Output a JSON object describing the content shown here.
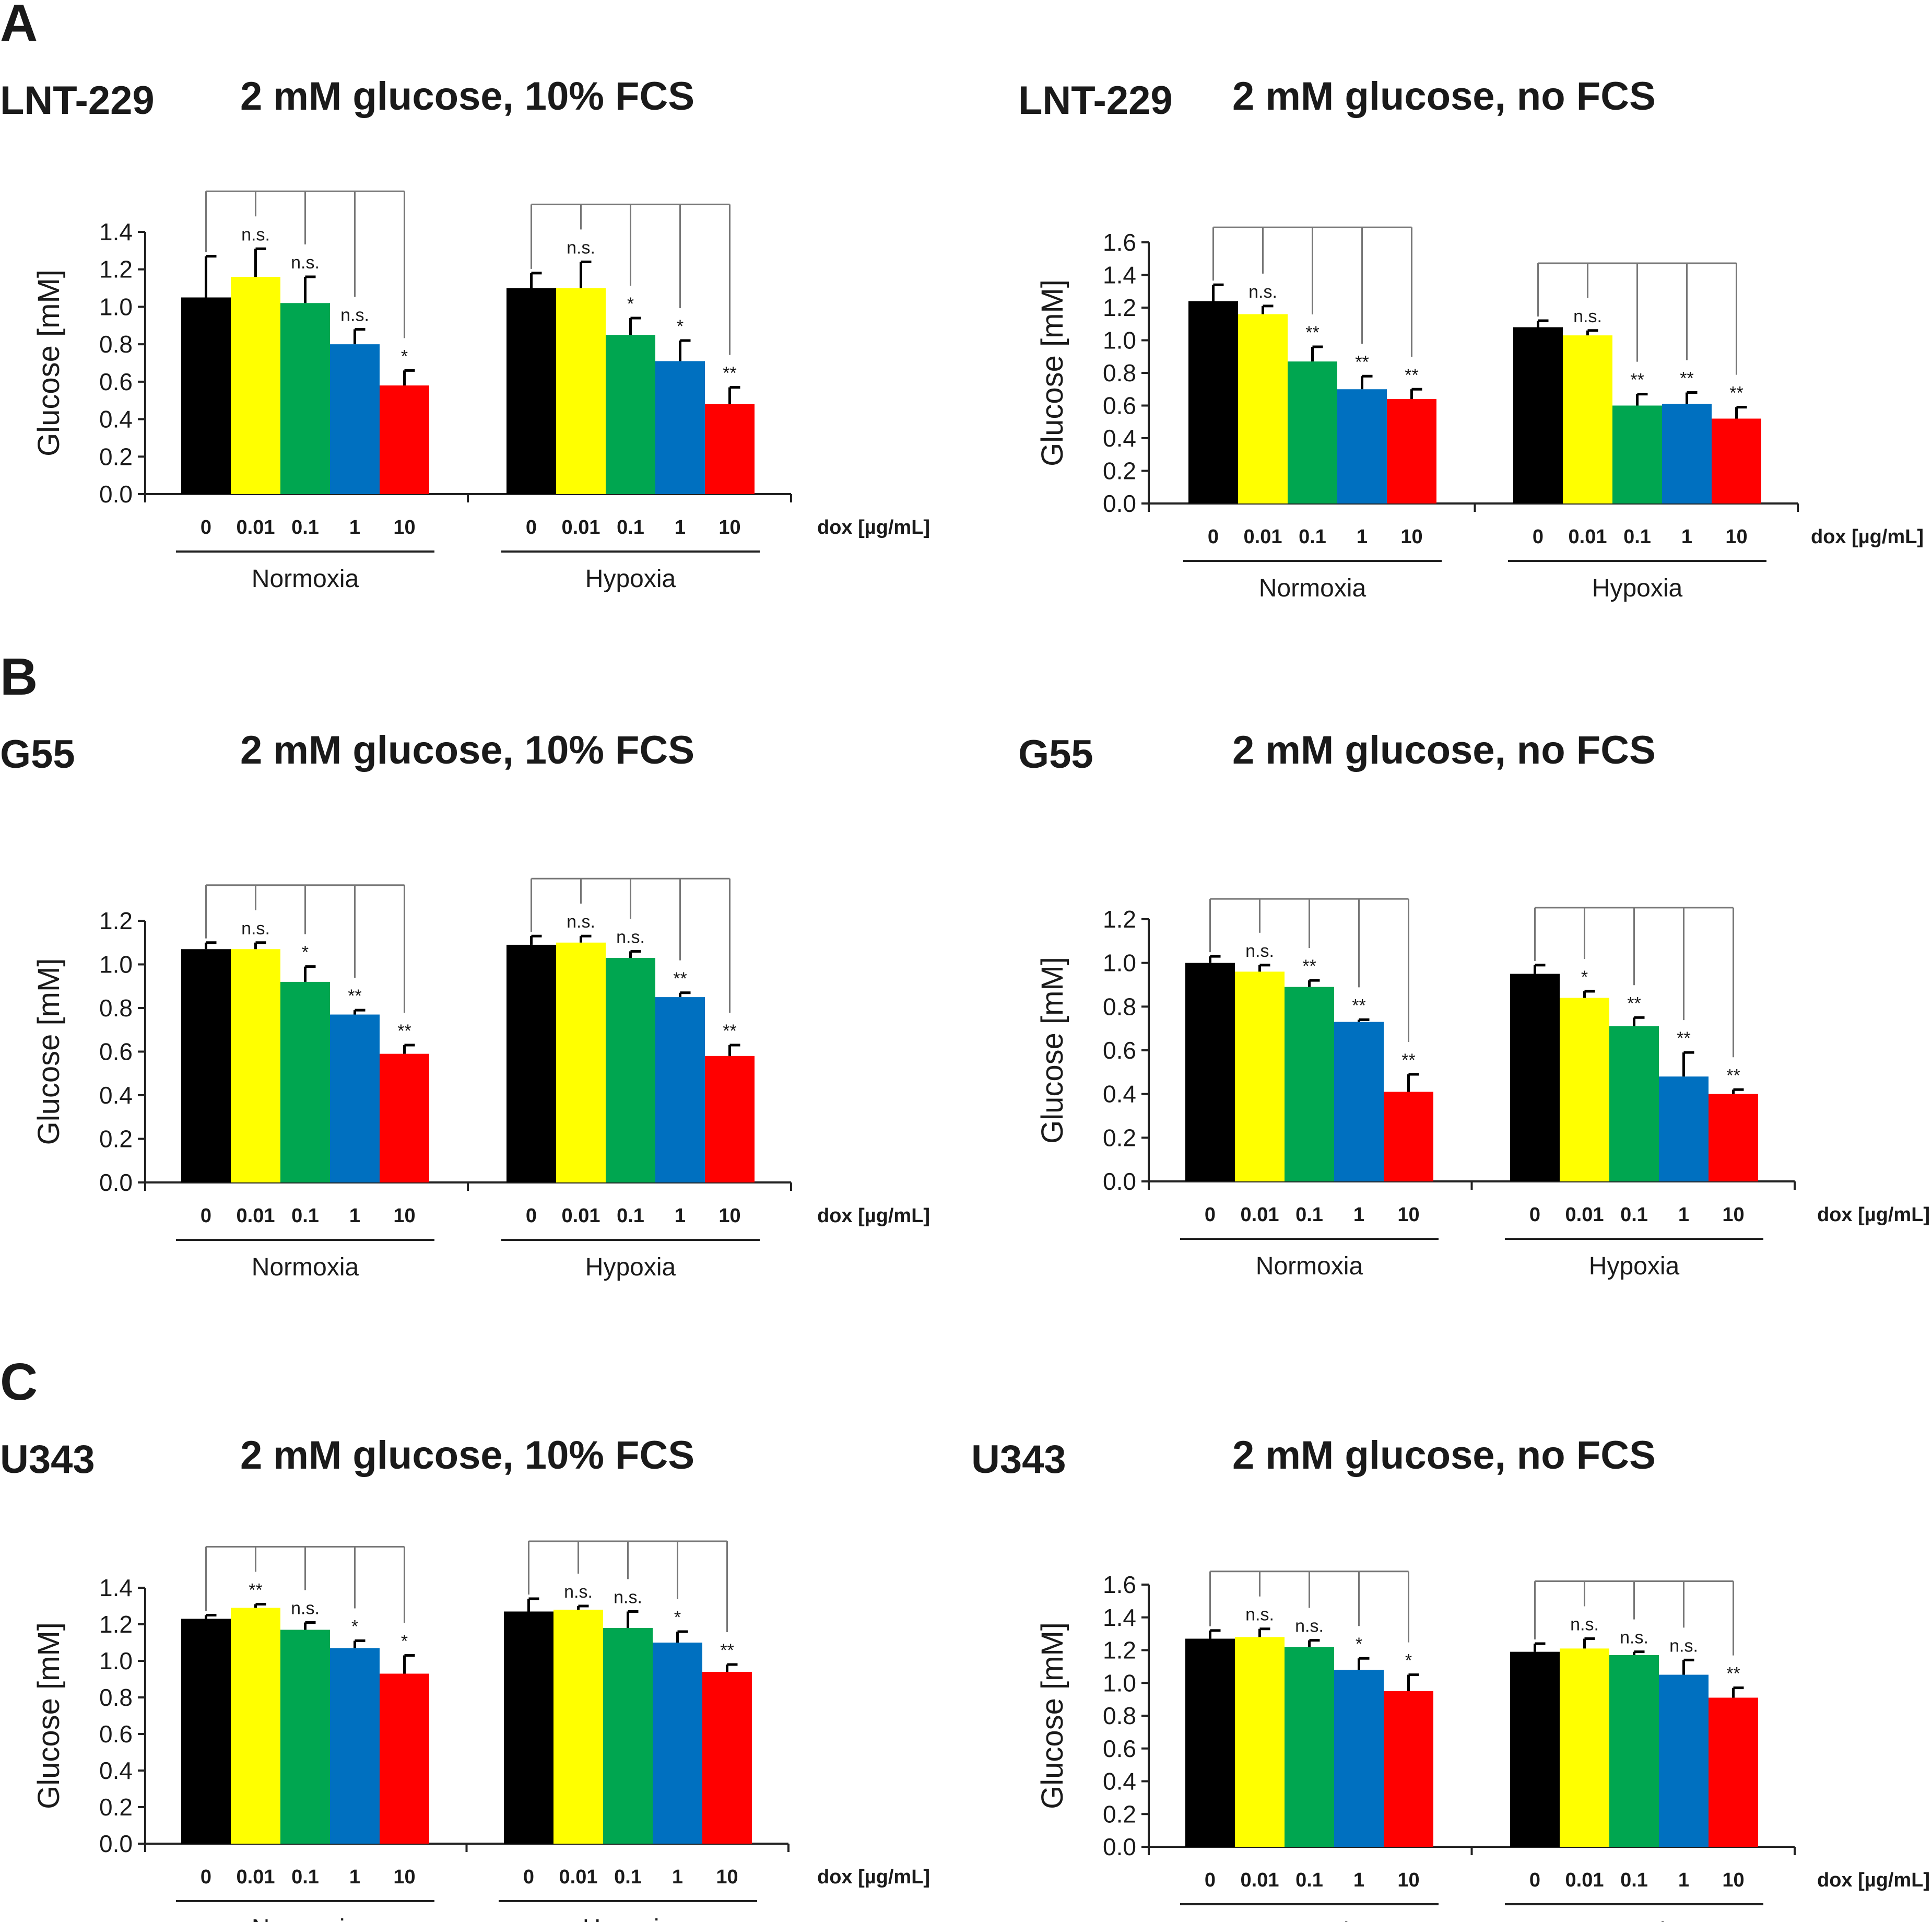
{
  "figure": {
    "panels": [
      {
        "letter": "A",
        "cell_line": "LNT-229"
      },
      {
        "letter": "B",
        "cell_line": "G55"
      },
      {
        "letter": "C",
        "cell_line": "U343"
      }
    ],
    "condition_labels": [
      "2 mM glucose, 10% FCS",
      "2 mM glucose, no FCS"
    ],
    "bar_colors": [
      "#000000",
      "#ffff00",
      "#00a650",
      "#0070c0",
      "#ff0000"
    ]
  },
  "chart_data": [
    {
      "type": "bar",
      "panel": "A",
      "cell_line": "LNT-229",
      "title": "2 mM glucose, 10% FCS",
      "ylabel": "Glucose [mM]",
      "xlabel": "dox [µg/mL]",
      "ylim": [
        0,
        1.4
      ],
      "yticks": [
        "0.0",
        "0.2",
        "0.4",
        "0.6",
        "0.8",
        "1.0",
        "1.2",
        "1.4"
      ],
      "categories": [
        "0",
        "0.01",
        "0.1",
        "1",
        "10"
      ],
      "groups": [
        {
          "name": "Normoxia",
          "values": [
            1.05,
            1.16,
            1.02,
            0.8,
            0.58
          ],
          "errors": [
            0.22,
            0.15,
            0.14,
            0.08,
            0.08
          ],
          "sig": [
            "",
            "n.s.",
            "n.s.",
            "n.s.",
            "*"
          ]
        },
        {
          "name": "Hypoxia",
          "values": [
            1.1,
            1.1,
            0.85,
            0.71,
            0.48
          ],
          "errors": [
            0.08,
            0.14,
            0.09,
            0.11,
            0.09
          ],
          "sig": [
            "",
            "n.s.",
            "*",
            "*",
            "**"
          ]
        }
      ]
    },
    {
      "type": "bar",
      "panel": "A",
      "cell_line": "LNT-229",
      "title": "2 mM glucose, no FCS",
      "ylabel": "Glucose [mM]",
      "xlabel": "dox [µg/mL]",
      "ylim": [
        0,
        1.6
      ],
      "yticks": [
        "0.0",
        "0.2",
        "0.4",
        "0.6",
        "0.8",
        "1.0",
        "1.2",
        "1.4",
        "1.6"
      ],
      "categories": [
        "0",
        "0.01",
        "0.1",
        "1",
        "10"
      ],
      "groups": [
        {
          "name": "Normoxia",
          "values": [
            1.24,
            1.16,
            0.87,
            0.7,
            0.64
          ],
          "errors": [
            0.1,
            0.05,
            0.09,
            0.08,
            0.06
          ],
          "sig": [
            "",
            "n.s.",
            "**",
            "**",
            "**"
          ]
        },
        {
          "name": "Hypoxia",
          "values": [
            1.08,
            1.03,
            0.6,
            0.61,
            0.52
          ],
          "errors": [
            0.04,
            0.03,
            0.07,
            0.07,
            0.07
          ],
          "sig": [
            "",
            "n.s.",
            "**",
            "**",
            "**"
          ]
        }
      ]
    },
    {
      "type": "bar",
      "panel": "B",
      "cell_line": "G55",
      "title": "2 mM glucose, 10% FCS",
      "ylabel": "Glucose [mM]",
      "xlabel": "dox [µg/mL]",
      "ylim": [
        0,
        1.2
      ],
      "yticks": [
        "0.0",
        "0.2",
        "0.4",
        "0.6",
        "0.8",
        "1.0",
        "1.2"
      ],
      "categories": [
        "0",
        "0.01",
        "0.1",
        "1",
        "10"
      ],
      "groups": [
        {
          "name": "Normoxia",
          "values": [
            1.07,
            1.07,
            0.92,
            0.77,
            0.59
          ],
          "errors": [
            0.03,
            0.03,
            0.07,
            0.02,
            0.04
          ],
          "sig": [
            "",
            "n.s.",
            "*",
            "**",
            "**"
          ]
        },
        {
          "name": "Hypoxia",
          "values": [
            1.09,
            1.1,
            1.03,
            0.85,
            0.58
          ],
          "errors": [
            0.04,
            0.03,
            0.03,
            0.02,
            0.05
          ],
          "sig": [
            "",
            "n.s.",
            "n.s.",
            "**",
            "**"
          ]
        }
      ]
    },
    {
      "type": "bar",
      "panel": "B",
      "cell_line": "G55",
      "title": "2 mM glucose, no FCS",
      "ylabel": "Glucose [mM]",
      "xlabel": "dox [µg/mL]",
      "ylim": [
        0,
        1.2
      ],
      "yticks": [
        "0.0",
        "0.2",
        "0.4",
        "0.6",
        "0.8",
        "1.0",
        "1.2"
      ],
      "categories": [
        "0",
        "0.01",
        "0.1",
        "1",
        "10"
      ],
      "groups": [
        {
          "name": "Normoxia",
          "values": [
            1.0,
            0.96,
            0.89,
            0.73,
            0.41
          ],
          "errors": [
            0.03,
            0.03,
            0.03,
            0.01,
            0.08
          ],
          "sig": [
            "",
            "n.s.",
            "**",
            "**",
            "**"
          ]
        },
        {
          "name": "Hypoxia",
          "values": [
            0.95,
            0.84,
            0.71,
            0.48,
            0.4
          ],
          "errors": [
            0.04,
            0.03,
            0.04,
            0.11,
            0.02
          ],
          "sig": [
            "",
            "*",
            "**",
            "**",
            "**"
          ]
        }
      ]
    },
    {
      "type": "bar",
      "panel": "C",
      "cell_line": "U343",
      "title": "2 mM glucose, 10% FCS",
      "ylabel": "Glucose [mM]",
      "xlabel": "dox [µg/mL]",
      "ylim": [
        0,
        1.4
      ],
      "yticks": [
        "0.0",
        "0.2",
        "0.4",
        "0.6",
        "0.8",
        "1.0",
        "1.2",
        "1.4"
      ],
      "categories": [
        "0",
        "0.01",
        "0.1",
        "1",
        "10"
      ],
      "groups": [
        {
          "name": "Normoxia",
          "values": [
            1.23,
            1.29,
            1.17,
            1.07,
            0.93
          ],
          "errors": [
            0.02,
            0.02,
            0.04,
            0.04,
            0.1
          ],
          "sig": [
            "",
            "**",
            "n.s.",
            "*",
            "*"
          ]
        },
        {
          "name": "Hypoxia",
          "values": [
            1.27,
            1.28,
            1.18,
            1.1,
            0.94
          ],
          "errors": [
            0.07,
            0.02,
            0.09,
            0.06,
            0.04
          ],
          "sig": [
            "",
            "n.s.",
            "n.s.",
            "*",
            "**"
          ]
        }
      ]
    },
    {
      "type": "bar",
      "panel": "C",
      "cell_line": "U343",
      "title": "2 mM glucose, no FCS",
      "ylabel": "Glucose [mM]",
      "xlabel": "dox [µg/mL]",
      "ylim": [
        0,
        1.6
      ],
      "yticks": [
        "0.0",
        "0.2",
        "0.4",
        "0.6",
        "0.8",
        "1.0",
        "1.2",
        "1.4",
        "1.6"
      ],
      "categories": [
        "0",
        "0.01",
        "0.1",
        "1",
        "10"
      ],
      "groups": [
        {
          "name": "Normoxia",
          "values": [
            1.27,
            1.28,
            1.22,
            1.08,
            0.95
          ],
          "errors": [
            0.05,
            0.05,
            0.04,
            0.07,
            0.1
          ],
          "sig": [
            "",
            "n.s.",
            "n.s.",
            "*",
            "*"
          ]
        },
        {
          "name": "Hypoxia",
          "values": [
            1.19,
            1.21,
            1.17,
            1.05,
            0.91
          ],
          "errors": [
            0.05,
            0.06,
            0.02,
            0.09,
            0.06
          ],
          "sig": [
            "",
            "n.s.",
            "n.s.",
            "n.s.",
            "**"
          ]
        }
      ]
    }
  ]
}
